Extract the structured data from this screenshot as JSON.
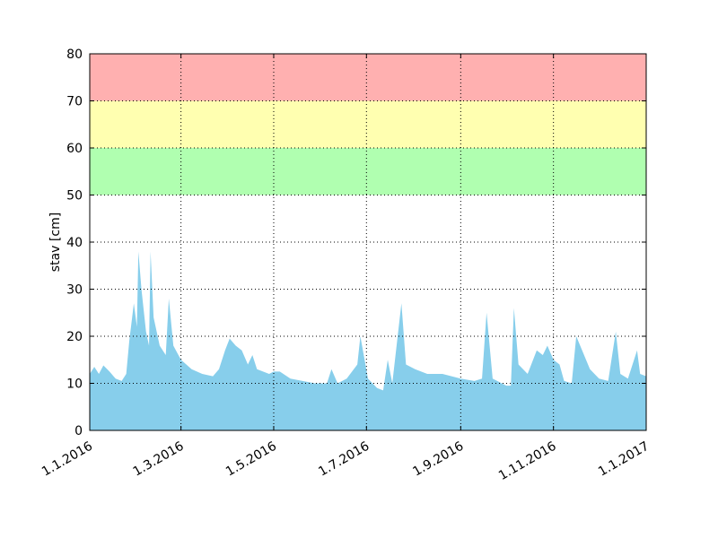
{
  "chart_data": {
    "type": "area",
    "ylabel": "stav [cm]",
    "color": "#87ceeb",
    "grid": true,
    "bands": [
      {
        "from": 50,
        "to": 60,
        "color": "#b0ffb0"
      },
      {
        "from": 60,
        "to": 70,
        "color": "#ffffb0"
      },
      {
        "from": 70,
        "to": 80,
        "color": "#ffb0b0"
      }
    ],
    "xlim": [
      "2016-01-01",
      "2017-01-01"
    ],
    "xticks": [
      {
        "value": "2016-01-01",
        "label": "1.1.2016"
      },
      {
        "value": "2016-03-01",
        "label": "1.3.2016"
      },
      {
        "value": "2016-05-01",
        "label": "1.5.2016"
      },
      {
        "value": "2016-07-01",
        "label": "1.7.2016"
      },
      {
        "value": "2016-09-01",
        "label": "1.9.2016"
      },
      {
        "value": "2016-11-01",
        "label": "1.11.2016"
      },
      {
        "value": "2017-01-01",
        "label": "1.1.2017"
      }
    ],
    "ylim": [
      0,
      80
    ],
    "yticks": [
      0,
      10,
      20,
      30,
      40,
      50,
      60,
      70,
      80
    ],
    "x": [
      "2016-01-01",
      "2016-01-04",
      "2016-01-07",
      "2016-01-10",
      "2016-01-14",
      "2016-01-18",
      "2016-01-22",
      "2016-01-25",
      "2016-01-27",
      "2016-01-30",
      "2016-02-01",
      "2016-02-02",
      "2016-02-04",
      "2016-02-07",
      "2016-02-09",
      "2016-02-10",
      "2016-02-12",
      "2016-02-16",
      "2016-02-20",
      "2016-02-22",
      "2016-02-25",
      "2016-03-01",
      "2016-03-08",
      "2016-03-15",
      "2016-03-22",
      "2016-03-26",
      "2016-03-30",
      "2016-04-02",
      "2016-04-06",
      "2016-04-10",
      "2016-04-14",
      "2016-04-17",
      "2016-04-20",
      "2016-04-28",
      "2016-05-01",
      "2016-05-05",
      "2016-05-12",
      "2016-05-20",
      "2016-05-28",
      "2016-06-05",
      "2016-06-08",
      "2016-06-12",
      "2016-06-18",
      "2016-06-25",
      "2016-06-27",
      "2016-07-02",
      "2016-07-08",
      "2016-07-12",
      "2016-07-15",
      "2016-07-18",
      "2016-07-24",
      "2016-07-27",
      "2016-08-02",
      "2016-08-10",
      "2016-08-20",
      "2016-09-01",
      "2016-09-10",
      "2016-09-15",
      "2016-09-18",
      "2016-09-22",
      "2016-10-01",
      "2016-10-04",
      "2016-10-06",
      "2016-10-09",
      "2016-10-15",
      "2016-10-21",
      "2016-10-25",
      "2016-10-28",
      "2016-11-01",
      "2016-11-05",
      "2016-11-08",
      "2016-11-13",
      "2016-11-16",
      "2016-11-25",
      "2016-12-01",
      "2016-12-07",
      "2016-12-12",
      "2016-12-15",
      "2016-12-20",
      "2016-12-26",
      "2016-12-28",
      "2017-01-01"
    ],
    "values": [
      12,
      13.5,
      12,
      13.8,
      12.5,
      11,
      10.5,
      12,
      19,
      27,
      22,
      38,
      30,
      21,
      18,
      38,
      24,
      18,
      16,
      28,
      18,
      15,
      13,
      12,
      11.5,
      13,
      17,
      19.5,
      18,
      17,
      14,
      16,
      13,
      12,
      12.5,
      12.5,
      11,
      10.5,
      10,
      10,
      13,
      10,
      11,
      14,
      20,
      11,
      9,
      8.5,
      15,
      10,
      27,
      14,
      13,
      12,
      12,
      11,
      10.5,
      11,
      25,
      11,
      9.5,
      9.5,
      26,
      14,
      12,
      17,
      16,
      18,
      15,
      14,
      10.5,
      10,
      20,
      13,
      11,
      10.5,
      21,
      12,
      11,
      17,
      12,
      11.5
    ]
  }
}
